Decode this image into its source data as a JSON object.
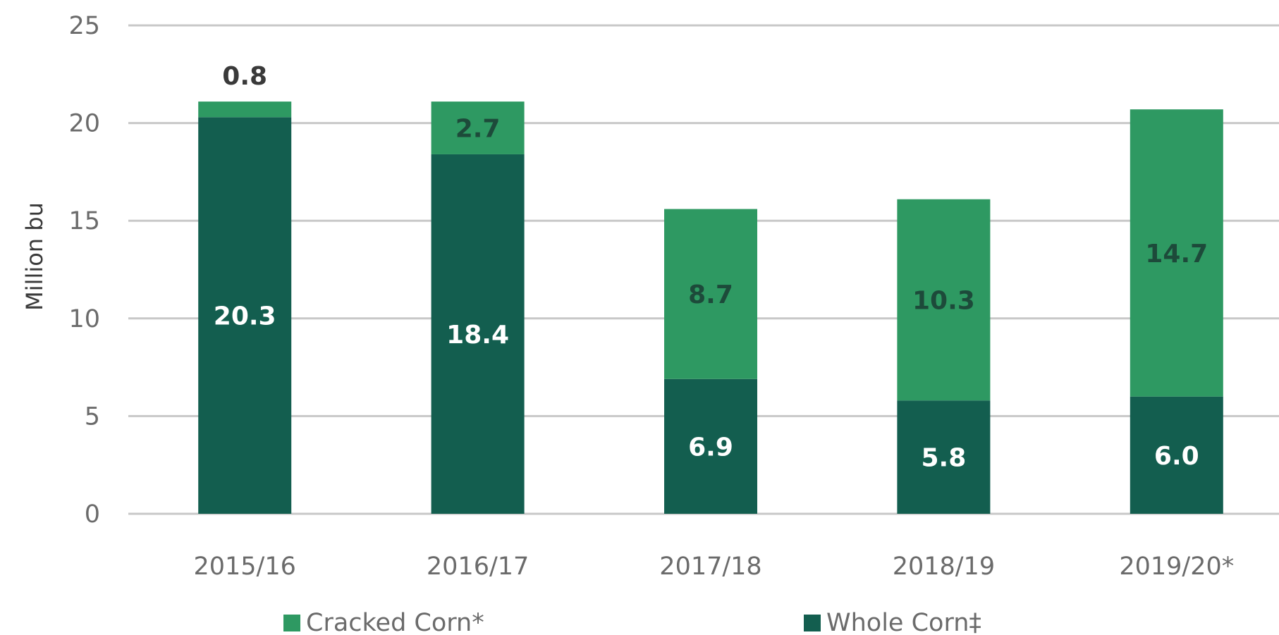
{
  "chart_data": {
    "type": "bar",
    "stacked": true,
    "ylabel": "Million bu",
    "xlabel": "",
    "ylim": [
      0,
      25
    ],
    "yticks": [
      0,
      5,
      10,
      15,
      20,
      25
    ],
    "grid": true,
    "legend_position": "bottom",
    "categories": [
      "2015/16",
      "2016/17",
      "2017/18",
      "2018/19",
      "2019/20*"
    ],
    "series": [
      {
        "name": "Whole Corn‡",
        "color": "#135e4f",
        "label_color": "#ffffff",
        "values": [
          20.3,
          18.4,
          6.9,
          5.8,
          6.0
        ],
        "labels": [
          "20.3",
          "18.4",
          "6.9",
          "5.8",
          "6.0"
        ]
      },
      {
        "name": "Cracked Corn*",
        "color": "#2e9962",
        "label_color": "#1d4a3a",
        "values": [
          0.8,
          2.7,
          8.7,
          10.3,
          14.7
        ],
        "labels": [
          "0.8",
          "2.7",
          "8.7",
          "10.3",
          "14.7"
        ]
      }
    ]
  }
}
